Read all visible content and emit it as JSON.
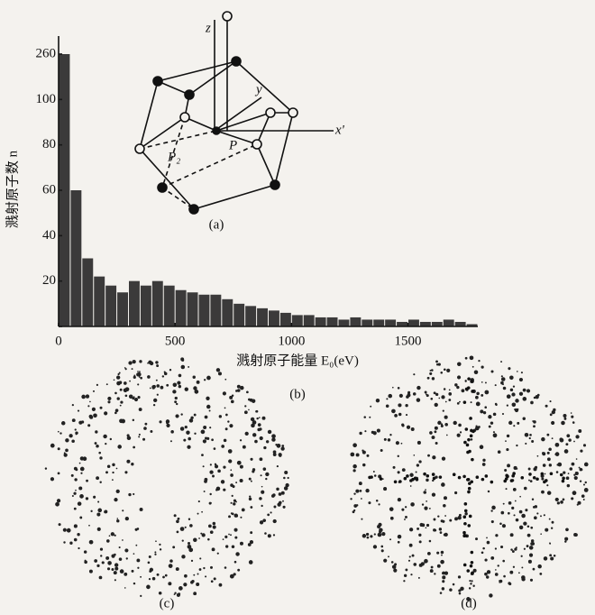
{
  "chart_data": {
    "type": "histogram",
    "ylabel": "溅射原子数 n",
    "xlabel": "溅射原子能量 E₀(eV)",
    "caption": "(b)",
    "bins": [
      0,
      50,
      100,
      150,
      200,
      250,
      300,
      350,
      400,
      450,
      500,
      550,
      600,
      650,
      700,
      750,
      800,
      850,
      900,
      950,
      1000,
      1050,
      1100,
      1150,
      1200,
      1250,
      1300,
      1350,
      1400,
      1450,
      1500,
      1550,
      1600,
      1650,
      1700,
      1750,
      1800
    ],
    "values": [
      260,
      60,
      30,
      22,
      18,
      15,
      20,
      18,
      20,
      18,
      16,
      15,
      14,
      14,
      12,
      10,
      9,
      8,
      7,
      6,
      5,
      5,
      4,
      4,
      3,
      4,
      3,
      3,
      3,
      2,
      3,
      2,
      2,
      3,
      2,
      1
    ],
    "color": "#1a1a1a",
    "xlim": [
      0,
      1800
    ],
    "xticks": [
      0,
      500,
      1000,
      1500
    ],
    "ylim": [
      0,
      260
    ],
    "yticks": [
      0,
      20,
      40,
      60,
      80,
      100,
      260
    ]
  },
  "diagram": {
    "labels": [
      "z",
      "y",
      "x'",
      "P₂",
      "P"
    ],
    "caption": "(a)"
  },
  "panels": [
    {
      "caption": "(c)"
    },
    {
      "caption": "(d)"
    }
  ]
}
